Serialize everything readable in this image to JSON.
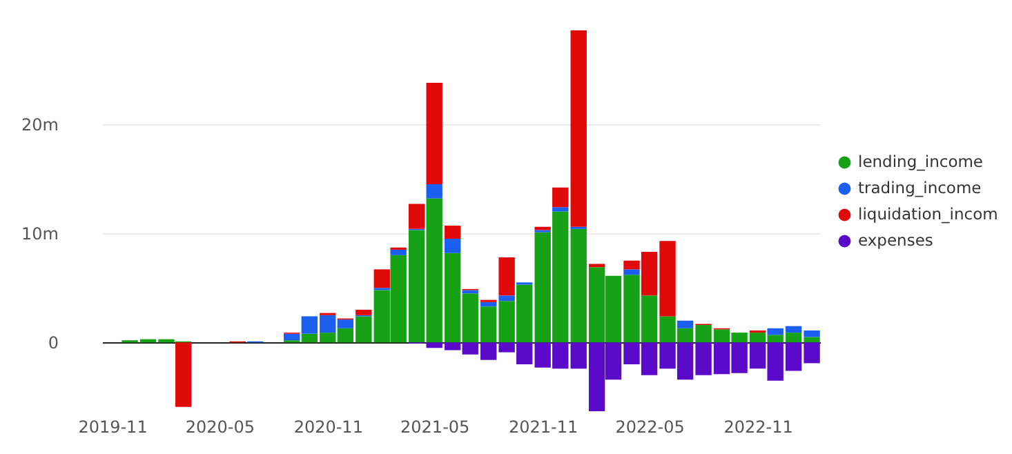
{
  "chart_data": {
    "type": "bar",
    "stacked": true,
    "x": [
      "2019-11",
      "2019-12",
      "2020-01",
      "2020-02",
      "2020-03",
      "2020-04",
      "2020-05",
      "2020-06",
      "2020-07",
      "2020-08",
      "2020-09",
      "2020-10",
      "2020-11",
      "2020-12",
      "2021-01",
      "2021-02",
      "2021-03",
      "2021-04",
      "2021-05",
      "2021-06",
      "2021-07",
      "2021-08",
      "2021-09",
      "2021-10",
      "2021-11",
      "2021-12",
      "2022-01",
      "2022-02",
      "2022-03",
      "2022-04",
      "2022-05",
      "2022-06",
      "2022-07",
      "2022-08",
      "2022-09",
      "2022-10",
      "2022-11",
      "2022-12",
      "2023-01",
      "2023-02"
    ],
    "xlim": [
      "2019-10-15",
      "2023-02-15"
    ],
    "xticks": [
      "2019-11",
      "2020-05",
      "2020-11",
      "2021-05",
      "2021-11",
      "2022-05",
      "2022-11"
    ],
    "series": [
      {
        "name": "lending_income",
        "color": "#17a117",
        "values": [
          0,
          0.2,
          0.3,
          0.3,
          0.1,
          0,
          0,
          0,
          0,
          0,
          0.2,
          0.8,
          0.9,
          1.3,
          2.4,
          4.8,
          8.0,
          10.3,
          13.2,
          8.2,
          4.5,
          3.3,
          3.8,
          5.3,
          10.1,
          12.0,
          10.4,
          6.9,
          6.1,
          6.2,
          4.3,
          2.4,
          1.3,
          1.6,
          1.2,
          0.9,
          0.9,
          0.7,
          0.9,
          0.5
        ]
      },
      {
        "name": "trading_income",
        "color": "#1a5ff0",
        "values": [
          0,
          0,
          0,
          0,
          0,
          0,
          0,
          0,
          0.1,
          0,
          0.6,
          1.6,
          1.6,
          0.8,
          0.1,
          0.2,
          0.5,
          0.1,
          1.3,
          1.3,
          0.3,
          0.4,
          0.5,
          0.2,
          0.2,
          0.4,
          0.2,
          0,
          0,
          0.5,
          0,
          0,
          0.7,
          0,
          0,
          0,
          0,
          0.6,
          0.6,
          0.6
        ]
      },
      {
        "name": "liquidation_incom",
        "color": "#e10a0a",
        "values": [
          0,
          0,
          0,
          0,
          -5.9,
          0,
          0,
          0.1,
          0,
          0,
          0.1,
          0,
          0.2,
          0.1,
          0.5,
          1.7,
          0.2,
          2.3,
          9.3,
          1.2,
          0.1,
          0.2,
          3.5,
          0,
          0.3,
          1.8,
          18.0,
          0.3,
          0,
          0.8,
          4.0,
          6.9,
          0,
          0.1,
          0.1,
          0,
          0.2,
          0,
          0,
          0
        ]
      },
      {
        "name": "expenses",
        "color": "#5a0ac8",
        "values": [
          0,
          0,
          0,
          0,
          0,
          0,
          0,
          0,
          0,
          0,
          0,
          0,
          0,
          0,
          0,
          0,
          0,
          -0.1,
          -0.5,
          -0.7,
          -1.1,
          -1.6,
          -0.9,
          -2.0,
          -2.3,
          -2.4,
          -2.4,
          -6.3,
          -3.4,
          -2.0,
          -3.0,
          -2.4,
          -3.4,
          -3.0,
          -2.9,
          -2.8,
          -2.4,
          -3.5,
          -2.6,
          -1.9
        ]
      }
    ],
    "ylim": [
      -6.3,
      28.6
    ],
    "yticks": [
      0,
      {
        "value": 10,
        "label": "10m"
      },
      {
        "value": 20,
        "label": "20m"
      }
    ],
    "grid": "y",
    "legend": "right"
  }
}
